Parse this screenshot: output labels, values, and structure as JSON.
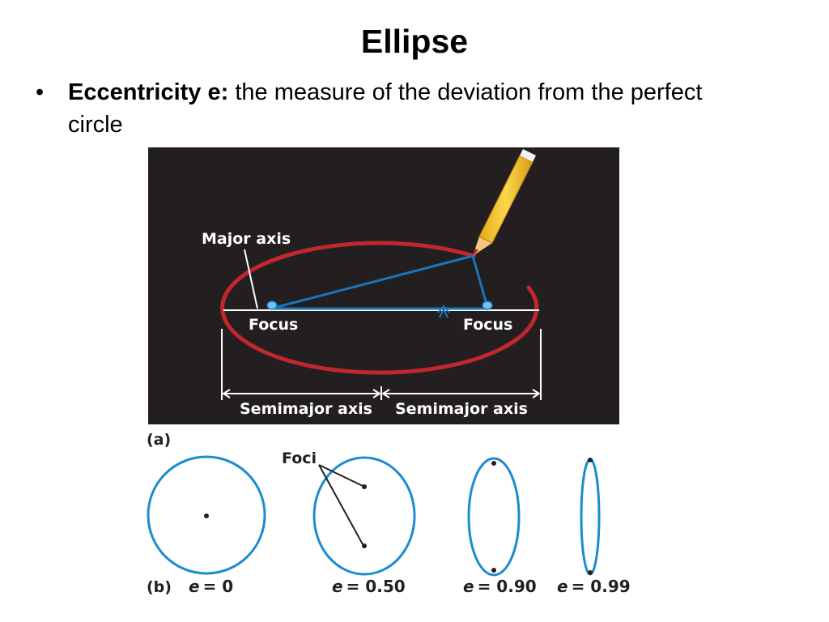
{
  "slide": {
    "title": "Ellipse",
    "bullet_marker": "•",
    "bullet_term": "Eccentricity e:",
    "bullet_text": " the measure of the deviation from the perfect circle"
  },
  "panel_a": {
    "label": "(a)",
    "major_axis_label": "Major axis",
    "focus_left_label": "Focus",
    "focus_right_label": "Focus",
    "semimajor_left_label": "Semimajor axis",
    "semimajor_right_label": "Semimajor axis",
    "colors": {
      "background": "#231f20",
      "ellipse": "#c1272d",
      "string": "#1b75bc",
      "axis": "#ffffff",
      "pencil": "#f7c531"
    }
  },
  "panel_b": {
    "label": "(b)",
    "foci_label": "Foci",
    "items": [
      {
        "e_symbol": "e",
        "e_value": "= 0"
      },
      {
        "e_symbol": "e",
        "e_value": "= 0.50"
      },
      {
        "e_symbol": "e",
        "e_value": "= 0.90"
      },
      {
        "e_symbol": "e",
        "e_value": "= 0.99"
      }
    ],
    "colors": {
      "ellipse": "#1a8ccf",
      "focus": "#231f20"
    }
  }
}
